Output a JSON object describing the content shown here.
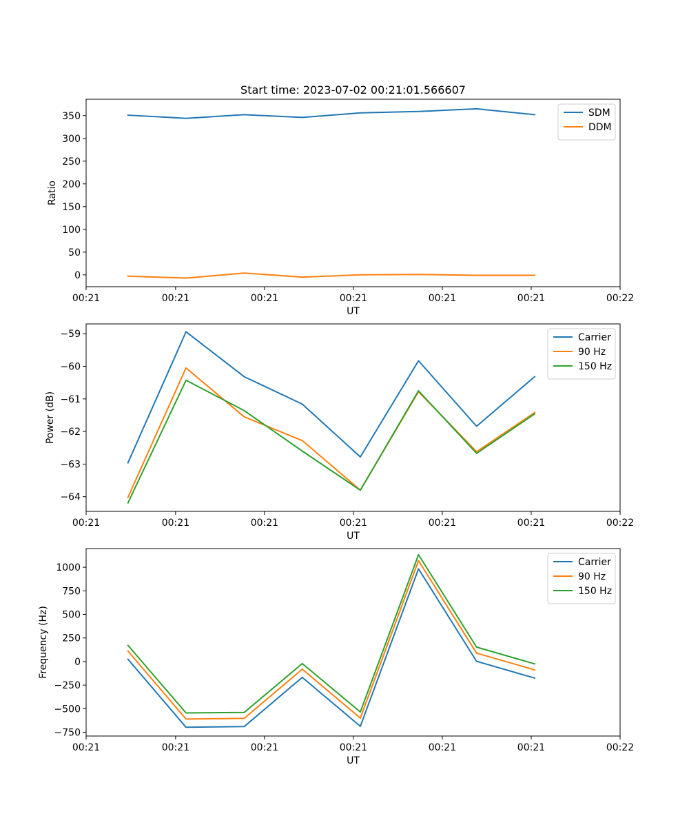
{
  "chart_data": [
    {
      "type": "line",
      "title": "Start time: 2023-07-02 00:21:01.566607",
      "xlabel": "UT",
      "ylabel": "Ratio",
      "x": [
        0,
        1,
        2,
        3,
        4,
        5,
        6,
        7
      ],
      "xlim": [
        -0.72,
        8.47
      ],
      "xticks": [
        -0.72,
        0.82,
        2.35,
        3.88,
        5.41,
        6.94,
        8.47
      ],
      "xtick_labels": [
        "00:21",
        "00:21",
        "00:21",
        "00:21",
        "00:21",
        "00:21",
        "00:22"
      ],
      "ylim": [
        -26,
        386
      ],
      "yticks": [
        0,
        50,
        100,
        150,
        200,
        250,
        300,
        350
      ],
      "ytick_labels": [
        "0",
        "50",
        "100",
        "150",
        "200",
        "250",
        "300",
        "350"
      ],
      "legend": "top-right",
      "grid": false,
      "series": [
        {
          "name": "SDM",
          "color": "#1f77b4",
          "values": [
            351,
            344,
            352,
            346,
            356,
            359,
            365,
            352
          ]
        },
        {
          "name": "DDM",
          "color": "#ff7f0e",
          "values": [
            -3,
            -7,
            4,
            -5,
            0,
            1,
            -1,
            -1
          ]
        }
      ]
    },
    {
      "type": "line",
      "xlabel": "UT",
      "ylabel": "Power (dB)",
      "x": [
        0,
        1,
        2,
        3,
        4,
        5,
        6,
        7
      ],
      "xlim": [
        -0.72,
        8.47
      ],
      "xticks": [
        -0.72,
        0.82,
        2.35,
        3.88,
        5.41,
        6.94,
        8.47
      ],
      "xtick_labels": [
        "00:21",
        "00:21",
        "00:21",
        "00:21",
        "00:21",
        "00:21",
        "00:22"
      ],
      "ylim": [
        -64.45,
        -58.7
      ],
      "yticks": [
        -64,
        -63,
        -62,
        -61,
        -60,
        -59
      ],
      "ytick_labels": [
        "−64",
        "−63",
        "−62",
        "−61",
        "−60",
        "−59"
      ],
      "legend": "top-right",
      "grid": false,
      "series": [
        {
          "name": "Carrier",
          "color": "#1f77b4",
          "values": [
            -62.96,
            -58.94,
            -60.32,
            -61.16,
            -62.78,
            -59.83,
            -61.84,
            -60.32
          ]
        },
        {
          "name": "90 Hz",
          "color": "#ff7f0e",
          "values": [
            -64.02,
            -60.05,
            -61.55,
            -62.28,
            -63.8,
            -60.78,
            -62.62,
            -61.42
          ]
        },
        {
          "name": "150 Hz",
          "color": "#2ca02c",
          "values": [
            -64.19,
            -60.43,
            -61.36,
            -62.6,
            -63.8,
            -60.75,
            -62.67,
            -61.46
          ]
        }
      ]
    },
    {
      "type": "line",
      "xlabel": "UT",
      "ylabel": "Frequency (Hz)",
      "x": [
        0,
        1,
        2,
        3,
        4,
        5,
        6,
        7
      ],
      "xlim": [
        -0.72,
        8.47
      ],
      "xticks": [
        -0.72,
        0.82,
        2.35,
        3.88,
        5.41,
        6.94,
        8.47
      ],
      "xtick_labels": [
        "00:21",
        "00:21",
        "00:21",
        "00:21",
        "00:21",
        "00:21",
        "00:22"
      ],
      "ylim": [
        -790,
        1198
      ],
      "yticks": [
        -750,
        -500,
        -250,
        0,
        250,
        500,
        750,
        1000
      ],
      "ytick_labels": [
        "−750",
        "−500",
        "−250",
        "0",
        "250",
        "500",
        "750",
        "1000"
      ],
      "legend": "top-right",
      "grid": false,
      "series": [
        {
          "name": "Carrier",
          "color": "#1f77b4",
          "values": [
            25,
            -697,
            -690,
            -168,
            -687,
            983,
            2,
            -175
          ]
        },
        {
          "name": "90 Hz",
          "color": "#ff7f0e",
          "values": [
            112,
            -610,
            -603,
            -81,
            -600,
            1070,
            89,
            -88
          ]
        },
        {
          "name": "150 Hz",
          "color": "#2ca02c",
          "values": [
            172,
            -545,
            -540,
            -22,
            -535,
            1133,
            153,
            -25
          ]
        }
      ]
    }
  ]
}
